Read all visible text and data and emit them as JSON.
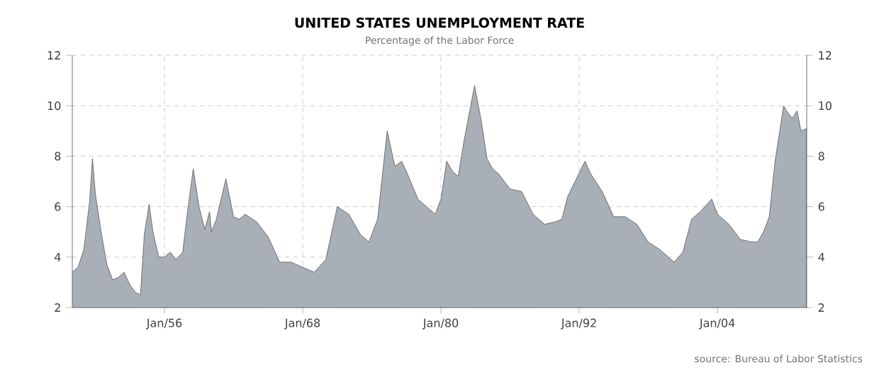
{
  "chart_data": {
    "type": "area",
    "title": "UNITED STATES UNEMPLOYMENT RATE",
    "subtitle": "Percentage of the Labor Force",
    "annotations": [
      "source: Bureau of Labor Statistics"
    ],
    "x": [
      "1948-01",
      "1948-07",
      "1949-01",
      "1949-07",
      "1949-10",
      "1950-01",
      "1950-07",
      "1951-01",
      "1951-07",
      "1952-01",
      "1952-07",
      "1953-01",
      "1953-07",
      "1953-12",
      "1954-04",
      "1954-09",
      "1955-01",
      "1955-07",
      "1956-01",
      "1956-07",
      "1957-01",
      "1957-08",
      "1958-01",
      "1958-07",
      "1959-01",
      "1959-07",
      "1959-12",
      "1960-02",
      "1960-07",
      "1961-05",
      "1962-01",
      "1962-07",
      "1963-01",
      "1964-01",
      "1965-01",
      "1966-01",
      "1967-01",
      "1968-01",
      "1969-01",
      "1970-01",
      "1971-01",
      "1972-01",
      "1973-01",
      "1973-10",
      "1974-07",
      "1975-05",
      "1976-01",
      "1976-08",
      "1977-01",
      "1978-01",
      "1979-01",
      "1979-07",
      "1980-01",
      "1980-07",
      "1981-01",
      "1981-07",
      "1982-01",
      "1982-12",
      "1983-07",
      "1984-01",
      "1984-07",
      "1985-01",
      "1986-01",
      "1987-01",
      "1988-01",
      "1989-01",
      "1989-12",
      "1990-07",
      "1991-01",
      "1992-07",
      "1993-01",
      "1994-01",
      "1995-01",
      "1996-01",
      "1997-01",
      "1998-01",
      "1999-01",
      "2000-04",
      "2001-01",
      "2001-10",
      "2002-07",
      "2003-07",
      "2004-01",
      "2005-01",
      "2006-01",
      "2007-01",
      "2007-07",
      "2008-01",
      "2008-07",
      "2009-01",
      "2009-10",
      "2010-01",
      "2010-07",
      "2010-12",
      "2011-04",
      "2011-10"
    ],
    "values": [
      3.4,
      3.6,
      4.3,
      6.2,
      7.9,
      6.5,
      5.0,
      3.7,
      3.1,
      3.2,
      3.4,
      2.9,
      2.6,
      2.5,
      4.9,
      6.1,
      5.0,
      4.0,
      4.0,
      4.2,
      3.9,
      4.2,
      5.8,
      7.5,
      6.0,
      5.1,
      5.8,
      5.0,
      5.5,
      7.1,
      5.6,
      5.5,
      5.7,
      5.4,
      4.8,
      3.8,
      3.8,
      3.6,
      3.4,
      3.9,
      6.0,
      5.7,
      4.9,
      4.6,
      5.5,
      9.0,
      7.6,
      7.8,
      7.4,
      6.3,
      5.9,
      5.7,
      6.3,
      7.8,
      7.4,
      7.2,
      8.6,
      10.8,
      9.4,
      7.9,
      7.5,
      7.3,
      6.7,
      6.6,
      5.7,
      5.3,
      5.4,
      5.5,
      6.4,
      7.8,
      7.3,
      6.6,
      5.6,
      5.6,
      5.3,
      4.6,
      4.3,
      3.8,
      4.2,
      5.5,
      5.8,
      6.3,
      5.7,
      5.3,
      4.7,
      4.6,
      4.6,
      5.0,
      5.6,
      7.8,
      10.0,
      9.8,
      9.5,
      9.8,
      9.0,
      9.1
    ],
    "color": "#a9afb6",
    "xlim": [
      "1948-01",
      "2011-10"
    ],
    "xticks": [
      {
        "value": "1956-01",
        "label": "Jan/56"
      },
      {
        "value": "1968-01",
        "label": "Jan/68"
      },
      {
        "value": "1980-01",
        "label": "Jan/80"
      },
      {
        "value": "1992-01",
        "label": "Jan/92"
      },
      {
        "value": "2004-01",
        "label": "Jan/04"
      }
    ],
    "ylim": [
      2,
      12
    ],
    "yticks": [
      2,
      4,
      6,
      8,
      10,
      12
    ],
    "y2lim": [
      2,
      12
    ],
    "y2ticks": [
      2,
      4,
      6,
      8,
      10,
      12
    ],
    "grid": true
  }
}
